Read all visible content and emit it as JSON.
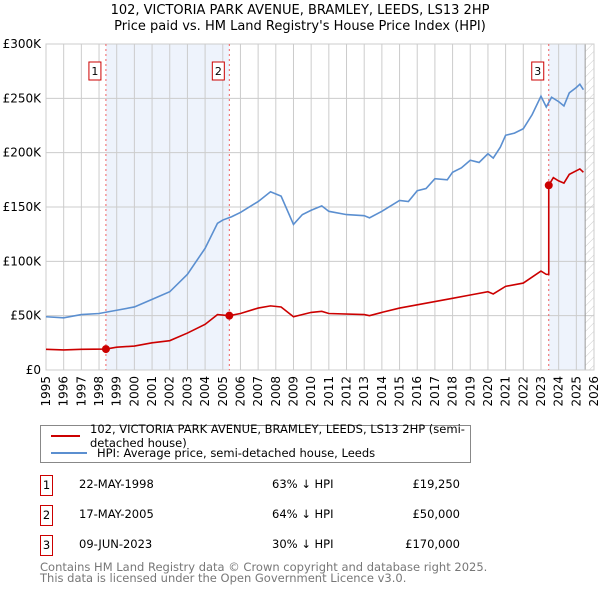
{
  "chart_data": {
    "type": "line",
    "title": "102, VICTORIA PARK AVENUE, BRAMLEY, LEEDS, LS13 2HP",
    "subtitle": "Price paid vs. HM Land Registry's House Price Index (HPI)",
    "xlim": [
      1995,
      2026
    ],
    "ylim": [
      0,
      300000
    ],
    "y_ticks": [
      {
        "v": 0,
        "label": "£0"
      },
      {
        "v": 50000,
        "label": "£50K"
      },
      {
        "v": 100000,
        "label": "£100K"
      },
      {
        "v": 150000,
        "label": "£150K"
      },
      {
        "v": 200000,
        "label": "£200K"
      },
      {
        "v": 250000,
        "label": "£250K"
      },
      {
        "v": 300000,
        "label": "£300K"
      }
    ],
    "x_ticks": [
      "1995",
      "1996",
      "1997",
      "1998",
      "1999",
      "2000",
      "2001",
      "2002",
      "2003",
      "2004",
      "2005",
      "2006",
      "2007",
      "2008",
      "2009",
      "2010",
      "2011",
      "2012",
      "2013",
      "2014",
      "2015",
      "2016",
      "2017",
      "2018",
      "2019",
      "2020",
      "2021",
      "2022",
      "2023",
      "2024",
      "2025",
      "2026"
    ],
    "grid": true,
    "series": [
      {
        "name": "102, VICTORIA PARK AVENUE, BRAMLEY, LEEDS, LS13 2HP (semi-detached house)",
        "color": "#cc0000",
        "x": [
          1995,
          1996,
          1997,
          1998.39,
          1999,
          2000,
          2001,
          2002,
          2003,
          2004,
          2004.7,
          2005.37,
          2006,
          2007,
          2007.7,
          2008.3,
          2009,
          2010,
          2010.6,
          2011,
          2013,
          2013.3,
          2014,
          2015,
          2016,
          2017,
          2018,
          2019,
          2020,
          2020.3,
          2021,
          2022,
          2023,
          2023.3,
          2023.44,
          2023.44,
          2023.7,
          2024,
          2024.3,
          2024.6,
          2025.2,
          2025.4
        ],
        "y": [
          19000,
          18500,
          19000,
          19250,
          21000,
          22000,
          25000,
          27000,
          34000,
          42000,
          51000,
          50000,
          52000,
          57000,
          59000,
          58000,
          49000,
          53000,
          54000,
          52000,
          51000,
          50000,
          53000,
          57000,
          60000,
          63000,
          66000,
          69000,
          72000,
          70000,
          77000,
          80000,
          91000,
          88000,
          88000,
          170000,
          177000,
          174000,
          172000,
          180000,
          185000,
          182000
        ]
      },
      {
        "name": "HPI: Average price, semi-detached house, Leeds",
        "color": "#5b8fd0",
        "x": [
          1995,
          1996,
          1997,
          1998,
          1999,
          2000,
          2001,
          2002,
          2003,
          2004,
          2004.7,
          2005,
          2005.5,
          2006,
          2007,
          2007.7,
          2008.3,
          2009,
          2009.5,
          2010,
          2010.6,
          2011,
          2012,
          2013,
          2013.3,
          2014,
          2015,
          2015.5,
          2016,
          2016.5,
          2017,
          2017.7,
          2018,
          2018.5,
          2019,
          2019.5,
          2020,
          2020.3,
          2020.7,
          2021,
          2021.5,
          2022,
          2022.5,
          2023,
          2023.3,
          2023.6,
          2024,
          2024.3,
          2024.6,
          2025,
          2025.2,
          2025.4
        ],
        "y": [
          49000,
          48000,
          51000,
          52000,
          55000,
          58000,
          65000,
          72000,
          88000,
          112000,
          135000,
          138000,
          141000,
          145000,
          155000,
          164000,
          160000,
          134000,
          143000,
          147000,
          151000,
          146000,
          143000,
          142000,
          140000,
          146000,
          156000,
          155000,
          165000,
          167000,
          176000,
          175000,
          182000,
          186000,
          193000,
          191000,
          199000,
          195000,
          205000,
          216000,
          218000,
          222000,
          235000,
          252000,
          242000,
          251000,
          247000,
          243000,
          255000,
          260000,
          263000,
          258000
        ]
      }
    ],
    "sales": [
      {
        "num": "1",
        "year": 1998.39,
        "price": 19250,
        "date": "22-MAY-1998",
        "price_label": "£19,250",
        "hpi": "63% ↓ HPI"
      },
      {
        "num": "2",
        "year": 2005.37,
        "price": 50000,
        "date": "17-MAY-2005",
        "price_label": "£50,000",
        "hpi": "64% ↓ HPI"
      },
      {
        "num": "3",
        "year": 2023.44,
        "price": 170000,
        "date": "09-JUN-2023",
        "price_label": "£170,000",
        "hpi": "30% ↓ HPI"
      }
    ]
  },
  "footer": [
    "Contains HM Land Registry data © Crown copyright and database right 2025.",
    "This data is licensed under the Open Government Licence v3.0."
  ]
}
